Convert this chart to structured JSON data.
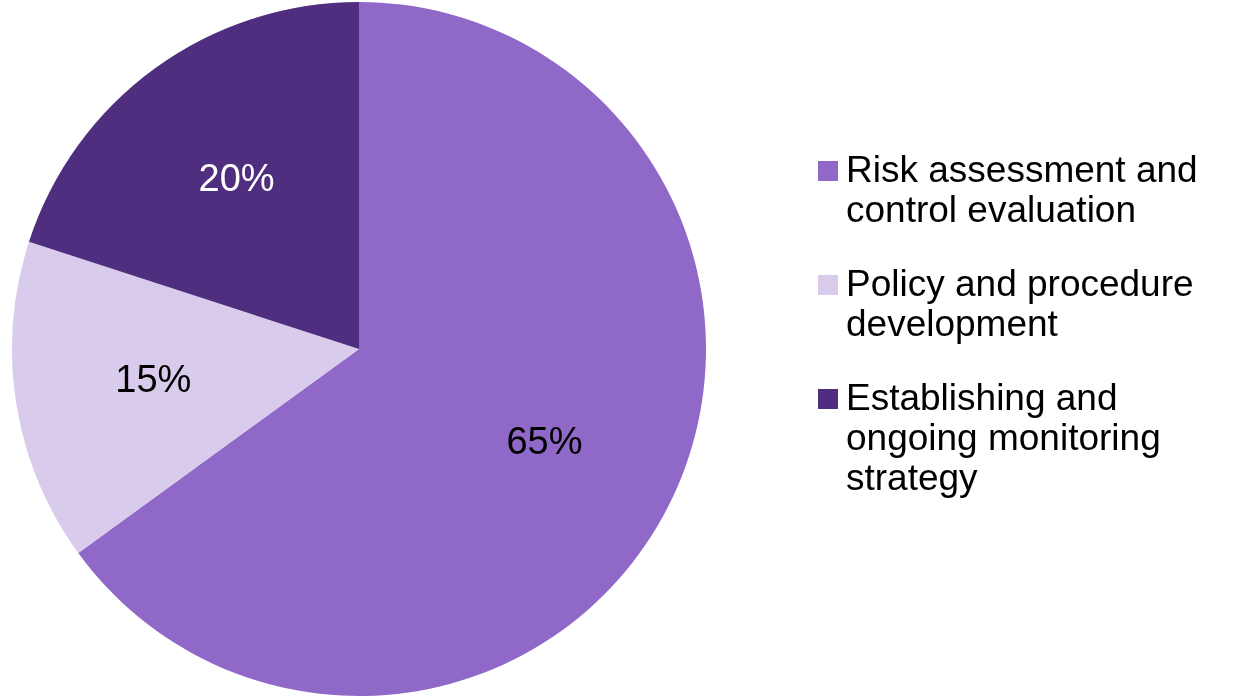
{
  "chart_data": {
    "type": "pie",
    "categories": [
      "Risk assessment and control evaluation",
      "Policy and procedure development",
      "Establishing and ongoing monitoring strategy"
    ],
    "values": [
      65,
      15,
      20
    ],
    "colors": [
      "#9069c8",
      "#d9cbec",
      "#4f2d7f"
    ],
    "value_labels": [
      "65%",
      "15%",
      "20%"
    ],
    "legend": "right"
  }
}
